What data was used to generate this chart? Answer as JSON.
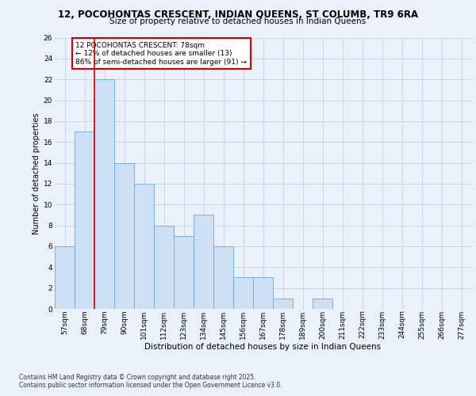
{
  "title1": "12, POCOHONTAS CRESCENT, INDIAN QUEENS, ST COLUMB, TR9 6RA",
  "title2": "Size of property relative to detached houses in Indian Queens",
  "xlabel": "Distribution of detached houses by size in Indian Queens",
  "ylabel": "Number of detached properties",
  "categories": [
    "57sqm",
    "68sqm",
    "79sqm",
    "90sqm",
    "101sqm",
    "112sqm",
    "123sqm",
    "134sqm",
    "145sqm",
    "156sqm",
    "167sqm",
    "178sqm",
    "189sqm",
    "200sqm",
    "211sqm",
    "222sqm",
    "233sqm",
    "244sqm",
    "255sqm",
    "266sqm",
    "277sqm"
  ],
  "values": [
    6,
    17,
    22,
    14,
    12,
    8,
    7,
    9,
    6,
    3,
    3,
    1,
    0,
    1,
    0,
    0,
    0,
    0,
    0,
    0,
    0
  ],
  "bar_color": "#ccdff5",
  "bar_edge_color": "#6aaad4",
  "grid_color": "#c8d4e8",
  "background_color": "#eaf0f8",
  "red_line_x": 1.5,
  "annotation_text": "12 POCOHONTAS CRESCENT: 78sqm\n← 12% of detached houses are smaller (13)\n86% of semi-detached houses are larger (91) →",
  "annotation_box_color": "#ffffff",
  "annotation_box_edge": "#cc0000",
  "ylim": [
    0,
    26
  ],
  "yticks": [
    0,
    2,
    4,
    6,
    8,
    10,
    12,
    14,
    16,
    18,
    20,
    22,
    24,
    26
  ],
  "footnote1": "Contains HM Land Registry data © Crown copyright and database right 2025.",
  "footnote2": "Contains public sector information licensed under the Open Government Licence v3.0.",
  "title1_fontsize": 8.5,
  "title2_fontsize": 7.5,
  "xlabel_fontsize": 7.5,
  "ylabel_fontsize": 7.0,
  "tick_fontsize": 6.5,
  "annot_fontsize": 6.5,
  "footnote_fontsize": 5.5
}
